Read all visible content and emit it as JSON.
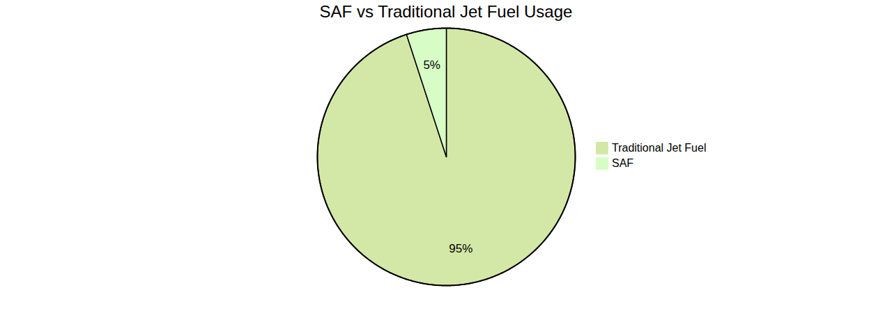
{
  "chart_data": {
    "type": "pie",
    "title": "SAF vs Traditional Jet Fuel Usage",
    "categories": [
      "Traditional Jet Fuel",
      "SAF"
    ],
    "values": [
      95,
      5
    ],
    "value_labels": [
      "95%",
      "5%"
    ],
    "colors": [
      "#d3e8a6",
      "#d8fcc6"
    ],
    "data_labels": true,
    "legend": "right"
  }
}
